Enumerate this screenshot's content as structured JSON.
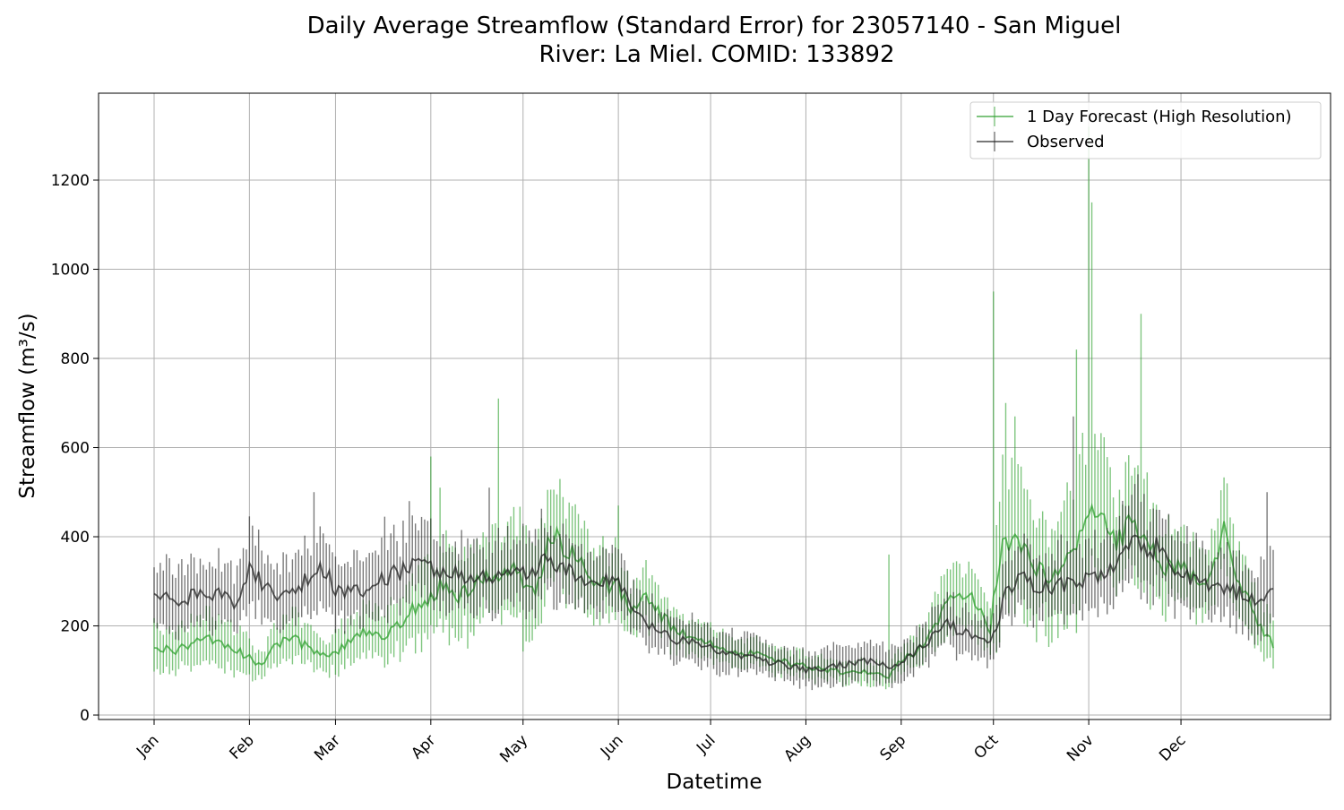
{
  "chart_data": {
    "type": "line",
    "title": "Daily Average Streamflow (Standard Error) for 23057140 - San Miguel",
    "subtitle": "River: La Miel. COMID: 133892",
    "xlabel": "Datetime",
    "ylabel": "Streamflow (m³/s)",
    "ylim": [
      -10,
      1395
    ],
    "yticks": [
      0,
      200,
      400,
      600,
      800,
      1000,
      1200
    ],
    "x_domain_days": [
      "Jan 1",
      "Dec 31"
    ],
    "xticks": [
      "Jan",
      "Feb",
      "Mar",
      "Apr",
      "May",
      "Jun",
      "Jul",
      "Aug",
      "Sep",
      "Oct",
      "Nov",
      "Dec"
    ],
    "grid": true,
    "legend_position": "top-right",
    "colors": {
      "forecast": "#2ca02c",
      "observed": "#222222",
      "grid": "#b0b0b0"
    },
    "series": [
      {
        "name": "1 Day Forecast (High Resolution)",
        "color": "#2ca02c",
        "anchors": {
          "date": [
            "Jan 1",
            "Jan 8",
            "Jan 15",
            "Jan 22",
            "Jan 29",
            "Feb 1",
            "Feb 5",
            "Feb 10",
            "Feb 15",
            "Feb 20",
            "Feb 25",
            "Mar 1",
            "Mar 5",
            "Mar 10",
            "Mar 15",
            "Mar 20",
            "Mar 25",
            "Apr 1",
            "Apr 5",
            "Apr 10",
            "Apr 15",
            "Apr 20",
            "Apr 24",
            "Apr 28",
            "May 5",
            "May 10",
            "May 15",
            "May 20",
            "May 25",
            "Jun 1",
            "Jun 5",
            "Jun 10",
            "Jun 15",
            "Jun 20",
            "Jun 25",
            "Jul 1",
            "Jul 10",
            "Jul 20",
            "Aug 1",
            "Aug 10",
            "Aug 20",
            "Aug 26",
            "Aug 28",
            "Sep 1",
            "Sep 5",
            "Sep 10",
            "Sep 15",
            "Sep 20",
            "Sep 25",
            "Sep 30",
            "Oct 1",
            "Oct 5",
            "Oct 10",
            "Oct 15",
            "Oct 20",
            "Oct 25",
            "Oct 29",
            "Nov 1",
            "Nov 5",
            "Nov 10",
            "Nov 15",
            "Nov 20",
            "Nov 25",
            "Dec 1",
            "Dec 5",
            "Dec 10",
            "Dec 15",
            "Dec 20",
            "Dec 25",
            "Dec 31"
          ],
          "mean": [
            150,
            145,
            165,
            170,
            140,
            130,
            110,
            160,
            175,
            150,
            135,
            140,
            160,
            190,
            175,
            195,
            230,
            260,
            300,
            270,
            290,
            310,
            300,
            330,
            270,
            400,
            380,
            340,
            300,
            285,
            240,
            270,
            220,
            190,
            170,
            160,
            145,
            125,
            110,
            100,
            95,
            90,
            85,
            125,
            140,
            170,
            250,
            255,
            260,
            185,
            280,
            400,
            380,
            330,
            300,
            370,
            400,
            460,
            450,
            380,
            430,
            380,
            330,
            330,
            310,
            300,
            410,
            300,
            220,
            160
          ],
          "se": [
            50,
            45,
            50,
            55,
            45,
            40,
            30,
            45,
            50,
            40,
            35,
            40,
            45,
            55,
            50,
            55,
            70,
            85,
            100,
            90,
            90,
            95,
            90,
            120,
            100,
            110,
            95,
            85,
            70,
            75,
            55,
            60,
            45,
            40,
            35,
            35,
            30,
            30,
            25,
            25,
            25,
            25,
            20,
            30,
            35,
            40,
            70,
            65,
            65,
            50,
            110,
            160,
            150,
            120,
            110,
            140,
            160,
            150,
            130,
            100,
            120,
            110,
            80,
            80,
            75,
            70,
            100,
            80,
            60,
            45
          ]
        },
        "spikes": {
          "date": [
            "Apr 1",
            "Apr 4",
            "Apr 23",
            "Jun 1",
            "Aug 28",
            "Oct 1",
            "Oct 5",
            "Oct 8",
            "Oct 28",
            "Nov 1",
            "Nov 2",
            "Nov 18"
          ],
          "value": [
            580,
            510,
            710,
            470,
            360,
            950,
            700,
            670,
            820,
            1320,
            1150,
            900
          ]
        }
      },
      {
        "name": "Observed",
        "color": "#222222",
        "anchors": {
          "date": [
            "Jan 1",
            "Jan 10",
            "Jan 20",
            "Jan 29",
            "Feb 1",
            "Feb 10",
            "Feb 20",
            "Feb 25",
            "Mar 1",
            "Mar 10",
            "Mar 15",
            "Mar 20",
            "Mar 25",
            "Apr 1",
            "Apr 10",
            "Apr 20",
            "Apr 24",
            "May 1",
            "May 10",
            "May 20",
            "May 25",
            "Jun 1",
            "Jun 5",
            "Jun 10",
            "Jun 20",
            "Jul 1",
            "Jul 10",
            "Jul 20",
            "Aug 1",
            "Aug 10",
            "Aug 20",
            "Aug 30",
            "Sep 5",
            "Sep 10",
            "Sep 15",
            "Sep 20",
            "Sep 25",
            "Sep 30",
            "Oct 5",
            "Oct 10",
            "Oct 15",
            "Oct 20",
            "Oct 25",
            "Oct 29",
            "Nov 1",
            "Nov 5",
            "Nov 10",
            "Nov 15",
            "Nov 20",
            "Nov 25",
            "Dec 1",
            "Dec 5",
            "Dec 10",
            "Dec 15",
            "Dec 20",
            "Dec 25",
            "Dec 31"
          ],
          "mean": [
            270,
            260,
            275,
            250,
            320,
            265,
            300,
            330,
            280,
            270,
            300,
            320,
            330,
            330,
            310,
            310,
            330,
            320,
            345,
            310,
            300,
            300,
            240,
            210,
            170,
            150,
            135,
            120,
            100,
            110,
            120,
            110,
            140,
            160,
            210,
            190,
            180,
            160,
            270,
            330,
            290,
            280,
            300,
            280,
            320,
            320,
            350,
            380,
            380,
            370,
            320,
            310,
            290,
            280,
            270,
            250,
            300
          ],
          "se": [
            70,
            70,
            70,
            65,
            75,
            65,
            70,
            75,
            65,
            65,
            70,
            70,
            70,
            75,
            70,
            70,
            75,
            75,
            80,
            70,
            65,
            65,
            55,
            50,
            45,
            40,
            40,
            35,
            35,
            40,
            40,
            40,
            40,
            45,
            50,
            50,
            45,
            45,
            60,
            75,
            70,
            70,
            70,
            70,
            75,
            75,
            80,
            85,
            85,
            80,
            75,
            70,
            70,
            70,
            70,
            70,
            85
          ]
        },
        "spikes": {
          "date": [
            "Feb 22",
            "Mar 17",
            "Mar 25",
            "Apr 20",
            "Oct 27",
            "Nov 17",
            "Dec 29"
          ],
          "value": [
            500,
            445,
            480,
            510,
            670,
            540,
            500
          ]
        }
      }
    ]
  }
}
